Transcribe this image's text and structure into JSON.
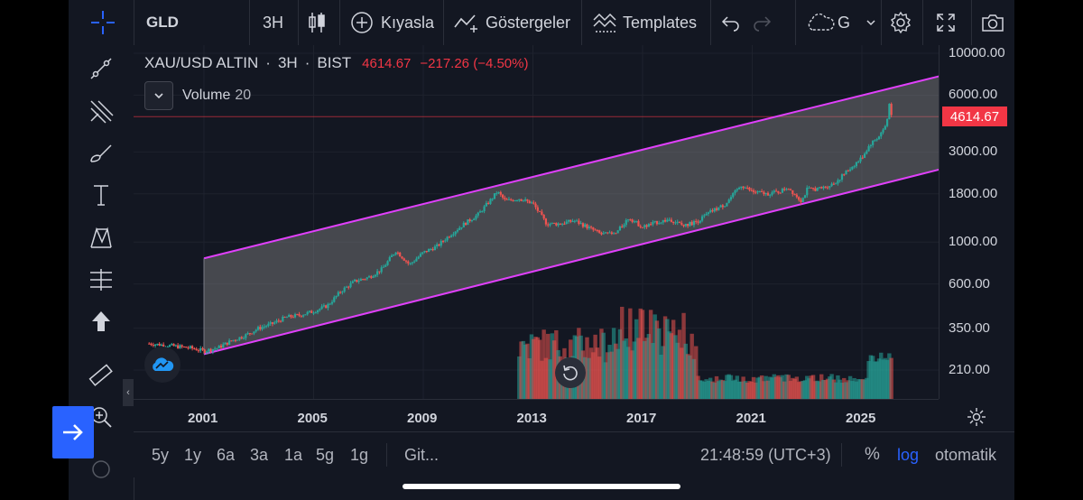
{
  "toolbar": {
    "symbol": "GLD",
    "interval": "3H",
    "compare_label": "Kıyasla",
    "indicators_label": "Göstergeler",
    "templates_label": "Templates",
    "layout_label": "G"
  },
  "legend": {
    "symbol": "XAU/USD ALTIN",
    "interval": "3H",
    "exchange": "BIST",
    "price": "4614.67",
    "change": "−217.26 (−4.50%)",
    "volume_label": "Volume",
    "volume_length": "20"
  },
  "price_axis": {
    "labels": [
      "10000.00",
      "6000.00",
      "3000.00",
      "1800.00",
      "1000.00",
      "600.00",
      "350.00",
      "210.00"
    ],
    "current_price": "4614.67"
  },
  "time_axis": {
    "labels": [
      "2001",
      "2005",
      "2009",
      "2013",
      "2017",
      "2021",
      "2025"
    ]
  },
  "bottombar": {
    "ranges": [
      "5y",
      "1y",
      "6a",
      "3a",
      "1a",
      "5g",
      "1g"
    ],
    "goto_label": "Git...",
    "clock": "21:48:59 (UTC+3)",
    "percent_label": "%",
    "log_label": "log",
    "auto_label": "otomatik"
  },
  "colors": {
    "background": "#131722",
    "up": "#26a69a",
    "down": "#ef5350",
    "channel": "#e040fb",
    "accent": "#2962ff",
    "price_tag": "#f23645"
  },
  "chart_data": {
    "type": "candlestick",
    "scale": "log",
    "x_ticks": [
      2001,
      2005,
      2009,
      2013,
      2017,
      2021,
      2025
    ],
    "y_ticks": [
      210,
      350,
      600,
      1000,
      1800,
      3000,
      6000,
      10000
    ],
    "series": [
      {
        "values": [
          [
            1999.0,
            290
          ],
          [
            1999.5,
            285
          ],
          [
            2000.0,
            280
          ],
          [
            2000.5,
            275
          ],
          [
            2001.0,
            265
          ],
          [
            2001.5,
            275
          ],
          [
            2002.0,
            300
          ],
          [
            2002.5,
            320
          ],
          [
            2003.0,
            350
          ],
          [
            2003.5,
            370
          ],
          [
            2004.0,
            400
          ],
          [
            2004.5,
            410
          ],
          [
            2005.0,
            430
          ],
          [
            2005.5,
            460
          ],
          [
            2006.0,
            550
          ],
          [
            2006.5,
            620
          ],
          [
            2007.0,
            650
          ],
          [
            2007.5,
            720
          ],
          [
            2008.0,
            900
          ],
          [
            2008.5,
            760
          ],
          [
            2009.0,
            880
          ],
          [
            2009.5,
            950
          ],
          [
            2010.0,
            1100
          ],
          [
            2010.5,
            1250
          ],
          [
            2011.0,
            1400
          ],
          [
            2011.5,
            1700
          ],
          [
            2011.7,
            1850
          ],
          [
            2012.0,
            1650
          ],
          [
            2012.5,
            1700
          ],
          [
            2013.0,
            1600
          ],
          [
            2013.5,
            1250
          ],
          [
            2014.0,
            1250
          ],
          [
            2014.5,
            1300
          ],
          [
            2015.0,
            1200
          ],
          [
            2015.5,
            1100
          ],
          [
            2016.0,
            1100
          ],
          [
            2016.5,
            1350
          ],
          [
            2017.0,
            1200
          ],
          [
            2017.5,
            1270
          ],
          [
            2018.0,
            1320
          ],
          [
            2018.5,
            1220
          ],
          [
            2019.0,
            1290
          ],
          [
            2019.5,
            1450
          ],
          [
            2020.0,
            1580
          ],
          [
            2020.6,
            2000
          ],
          [
            2021.0,
            1850
          ],
          [
            2021.5,
            1800
          ],
          [
            2022.0,
            1850
          ],
          [
            2022.3,
            1950
          ],
          [
            2022.8,
            1650
          ],
          [
            2023.0,
            1900
          ],
          [
            2023.5,
            1920
          ],
          [
            2024.0,
            2050
          ],
          [
            2024.5,
            2400
          ],
          [
            2025.0,
            2800
          ],
          [
            2025.3,
            3300
          ],
          [
            2025.6,
            3600
          ],
          [
            2025.9,
            4200
          ],
          [
            2026.0,
            5400
          ],
          [
            2026.1,
            4614.67
          ]
        ]
      }
    ],
    "channel": {
      "upper": [
        [
          2001,
          820
        ],
        [
          2028.2,
          7800
        ]
      ],
      "lower": [
        [
          2001,
          255
        ],
        [
          2028.2,
          2500
        ]
      ]
    }
  }
}
